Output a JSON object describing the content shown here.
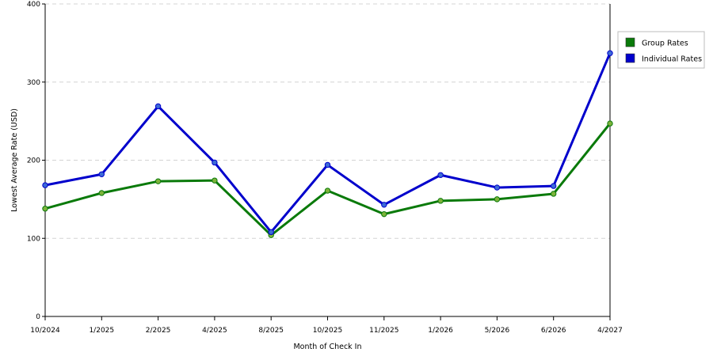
{
  "chart_data": {
    "type": "line",
    "xlabel": "Month of Check In",
    "ylabel": "Lowest Average Rate (USD)",
    "ylim": [
      0,
      400
    ],
    "yticks": [
      0,
      100,
      200,
      300,
      400
    ],
    "grid": "horizontal dashed",
    "legend_position": "right",
    "categories": [
      "10/2024",
      "1/2025",
      "2/2025",
      "4/2025",
      "8/2025",
      "10/2025",
      "11/2025",
      "1/2026",
      "5/2026",
      "6/2026",
      "4/2027"
    ],
    "series": [
      {
        "name": "Group Rates",
        "color": "#0a7a0a",
        "marker_color": "#7db33b",
        "values": [
          138,
          158,
          173,
          174,
          104,
          161,
          131,
          148,
          150,
          157,
          247
        ]
      },
      {
        "name": "Individual Rates",
        "color": "#0000cc",
        "marker_color": "#3d6bd6",
        "values": [
          168,
          182,
          269,
          197,
          108,
          194,
          143,
          181,
          165,
          167,
          337
        ]
      }
    ]
  }
}
